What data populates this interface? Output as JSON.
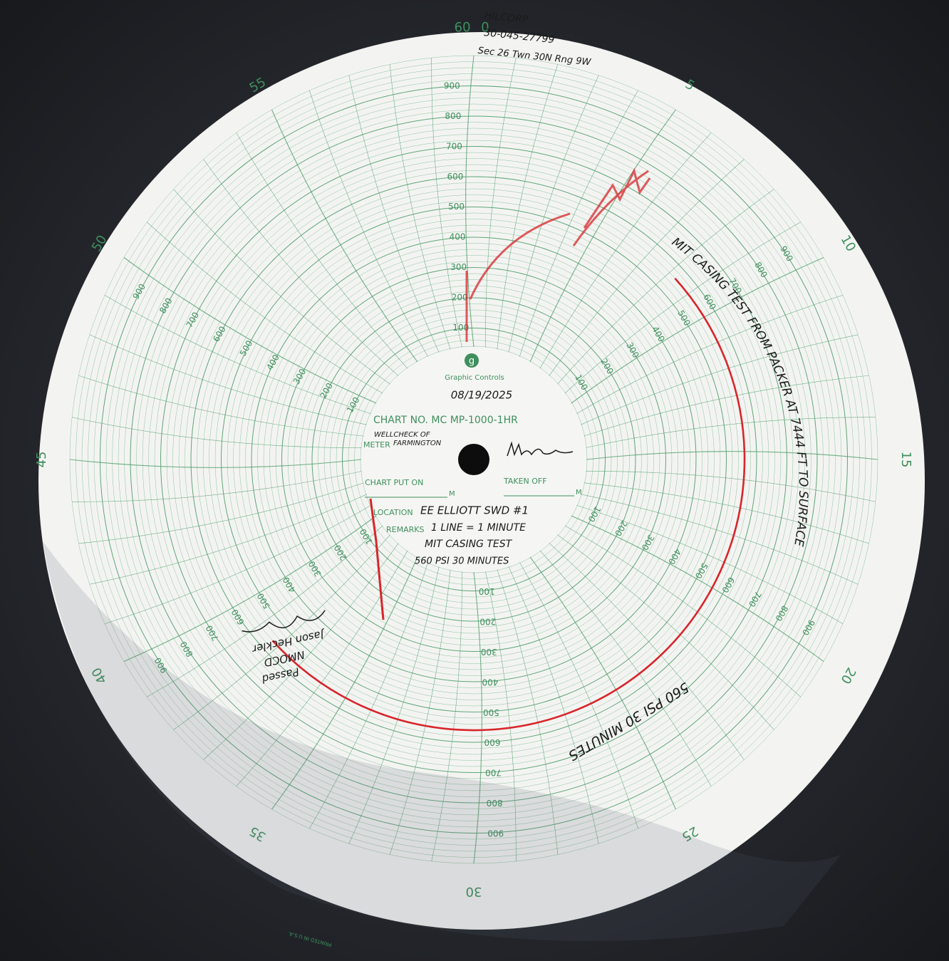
{
  "header": {
    "brand": "Graphic Controls",
    "logo": "g",
    "chart_no": "CHART NO. MC MP-1000-1HR",
    "date": "08/19/2025"
  },
  "fields": {
    "meter_label": "METER",
    "meter_value_1": "WELLCHECK OF",
    "meter_value_2": "FARMINGTON",
    "put_on_label": "CHART PUT ON",
    "taken_off_label": "TAKEN OFF",
    "m_label": "M",
    "location_label": "LOCATION",
    "location_value": "EE ELLIOTT SWD #1",
    "remarks_label": "REMARKS",
    "remarks_1": "1 LINE = 1 MINUTE",
    "remarks_2": "MIT CASING TEST",
    "remarks_3": "560 PSI 30 MINUTES"
  },
  "minute_labels": [
    0,
    5,
    10,
    15,
    20,
    25,
    30,
    35,
    40,
    45,
    50,
    55,
    60
  ],
  "pressure_labels": [
    100,
    200,
    300,
    400,
    500,
    600,
    700,
    800,
    900
  ],
  "annotations": {
    "operator": "HILCORP",
    "api": "30-045-27799",
    "legal": "Sec 26 Twn 30N Rng 9W",
    "test_note": "MIT CASING TEST FROM PACKER AT 7444 FT TO SURFACE",
    "result_note": "560 PSI 30 MINUTES",
    "witness_1": "Jason Heckler",
    "witness_2": "NMOCD",
    "witness_3": "Passed",
    "printed": "PRINTED IN U.S.A."
  },
  "trace": {
    "pressure": 560,
    "start_minute": 8,
    "end_minute": 38
  }
}
